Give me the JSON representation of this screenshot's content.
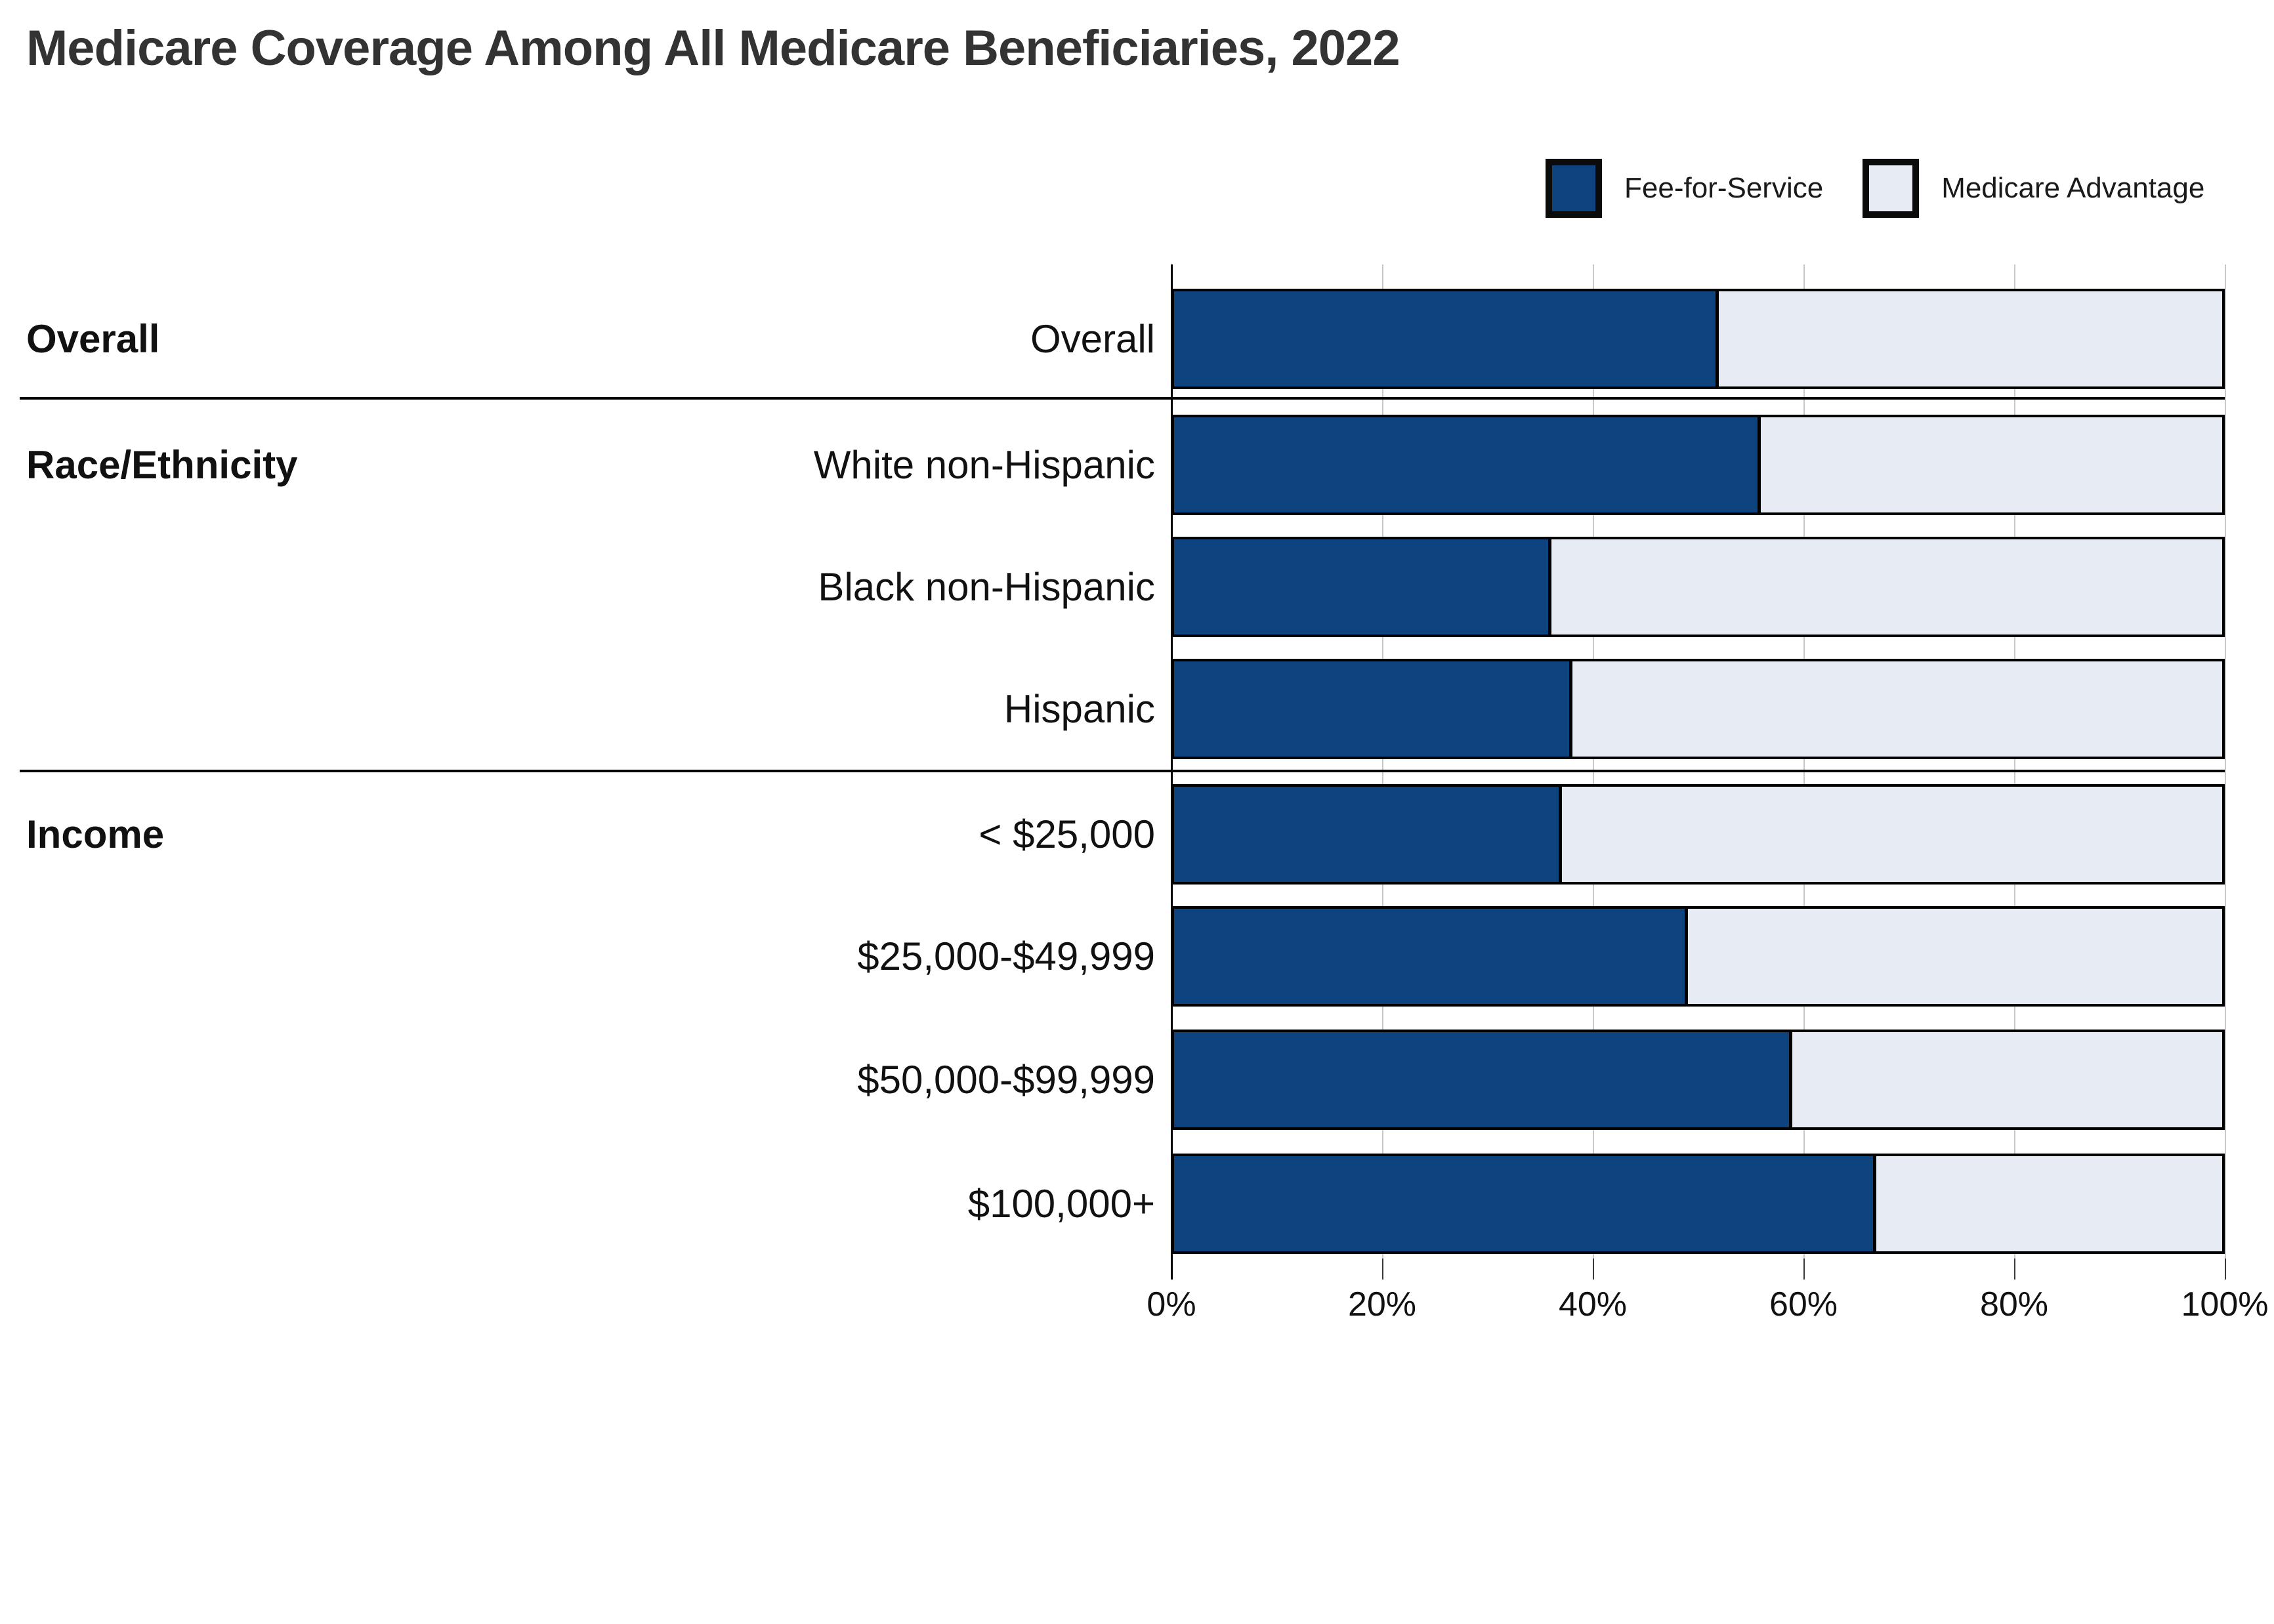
{
  "title": "Medicare Coverage Among All Medicare Beneficiaries, 2022",
  "legend": {
    "items": [
      {
        "label": "Fee-for-Service",
        "color": "#0d447f"
      },
      {
        "label": "Medicare Advantage",
        "color": "#e7ebf4"
      }
    ]
  },
  "colors": {
    "fee_for_service": "#0d447f",
    "medicare_advantage": "#e7ebf4",
    "bar_border": "#000000",
    "gridline": "#c9c9c9",
    "title_text": "#333333",
    "label_text": "#111111"
  },
  "chart_data": {
    "type": "bar",
    "orientation": "horizontal",
    "stacked": true,
    "unit": "percent",
    "title": "Medicare Coverage Among All Medicare Beneficiaries, 2022",
    "xlim": [
      0,
      100
    ],
    "x_ticks": [
      "0%",
      "20%",
      "40%",
      "60%",
      "80%",
      "100%"
    ],
    "grid": "vertical-light",
    "legend_position": "top-right",
    "series_names": [
      "Fee-for-Service",
      "Medicare Advantage"
    ],
    "categories": [
      "Overall",
      "White non-Hispanic",
      "Black non-Hispanic",
      "Hispanic",
      "< $25,000",
      "$25,000-$49,999",
      "$50,000-$99,999",
      "$100,000+"
    ],
    "series": [
      {
        "name": "Fee-for-Service",
        "values": [
          52,
          56,
          36,
          38,
          37,
          49,
          59,
          67
        ]
      },
      {
        "name": "Medicare Advantage",
        "values": [
          48,
          44,
          64,
          62,
          63,
          51,
          41,
          33
        ]
      }
    ],
    "groups": [
      {
        "group": "Overall",
        "rows": [
          {
            "category": "Overall",
            "fee_for_service": 52,
            "medicare_advantage": 48
          }
        ]
      },
      {
        "group": "Race/Ethnicity",
        "rows": [
          {
            "category": "White non-Hispanic",
            "fee_for_service": 56,
            "medicare_advantage": 44
          },
          {
            "category": "Black non-Hispanic",
            "fee_for_service": 36,
            "medicare_advantage": 64
          },
          {
            "category": "Hispanic",
            "fee_for_service": 38,
            "medicare_advantage": 62
          }
        ]
      },
      {
        "group": "Income",
        "rows": [
          {
            "category": "< $25,000",
            "fee_for_service": 37,
            "medicare_advantage": 63
          },
          {
            "category": "$25,000-$49,999",
            "fee_for_service": 49,
            "medicare_advantage": 51
          },
          {
            "category": "$50,000-$99,999",
            "fee_for_service": 59,
            "medicare_advantage": 41
          },
          {
            "category": "$100,000+",
            "fee_for_service": 67,
            "medicare_advantage": 33
          }
        ]
      }
    ]
  }
}
